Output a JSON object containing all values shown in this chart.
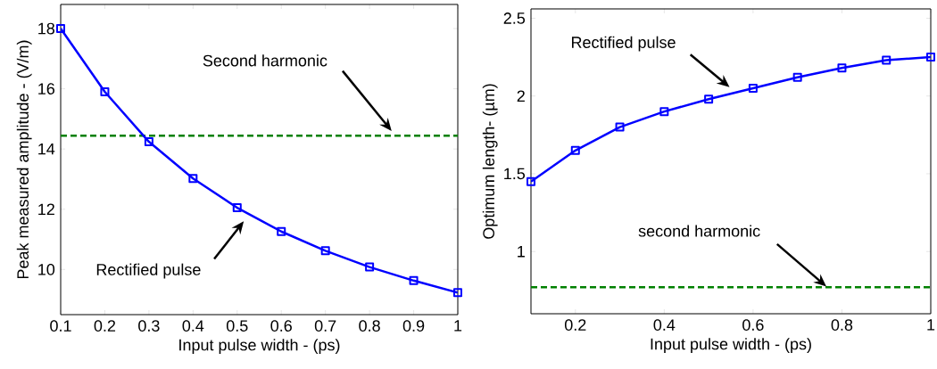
{
  "chart_data": [
    {
      "type": "line",
      "x": [
        0.1,
        0.2,
        0.3,
        0.4,
        0.5,
        0.6,
        0.7,
        0.8,
        0.9,
        1.0
      ],
      "values": [
        18.0,
        15.9,
        14.24,
        13.02,
        12.05,
        11.26,
        10.62,
        10.08,
        9.63,
        9.23
      ],
      "color": "#0000ff",
      "marker": "square",
      "line_style": "solid",
      "xlim": [
        0.1,
        1.0
      ],
      "ylim": [
        8.5,
        18.8
      ],
      "xticks": [
        0.1,
        0.2,
        0.3,
        0.4,
        0.5,
        0.6,
        0.7,
        0.8,
        0.9,
        1
      ],
      "yticks": [
        10,
        12,
        14,
        16,
        18
      ],
      "xlabel": "Input pulse width - (ps)",
      "ylabel": "Peak measured amplitude - (V/m)",
      "ref_lines": [
        {
          "axis": "y",
          "value": 14.44,
          "color": "#008000",
          "line_style": "dashed"
        }
      ],
      "annotations": [
        "Second harmonic",
        "Rectified pulse"
      ]
    },
    {
      "type": "line",
      "x": [
        0.1,
        0.2,
        0.3,
        0.4,
        0.5,
        0.6,
        0.7,
        0.8,
        0.9,
        1.0
      ],
      "values": [
        1.45,
        1.65,
        1.8,
        1.9,
        1.98,
        2.05,
        2.12,
        2.18,
        2.23,
        2.25
      ],
      "color": "#0000ff",
      "marker": "square",
      "line_style": "solid",
      "xlim": [
        0.1,
        1.0
      ],
      "ylim": [
        0.6,
        2.56
      ],
      "xticks": [
        0.2,
        0.4,
        0.6,
        0.8,
        1
      ],
      "yticks": [
        1,
        1.5,
        2,
        2.5
      ],
      "xlabel": "Input pulse width - (ps)",
      "ylabel": "Optimum length- (µm)",
      "ref_lines": [
        {
          "axis": "y",
          "value": 0.77,
          "color": "#008000",
          "line_style": "dashed"
        }
      ],
      "annotations": [
        "Rectified pulse",
        "second harmonic"
      ]
    }
  ]
}
